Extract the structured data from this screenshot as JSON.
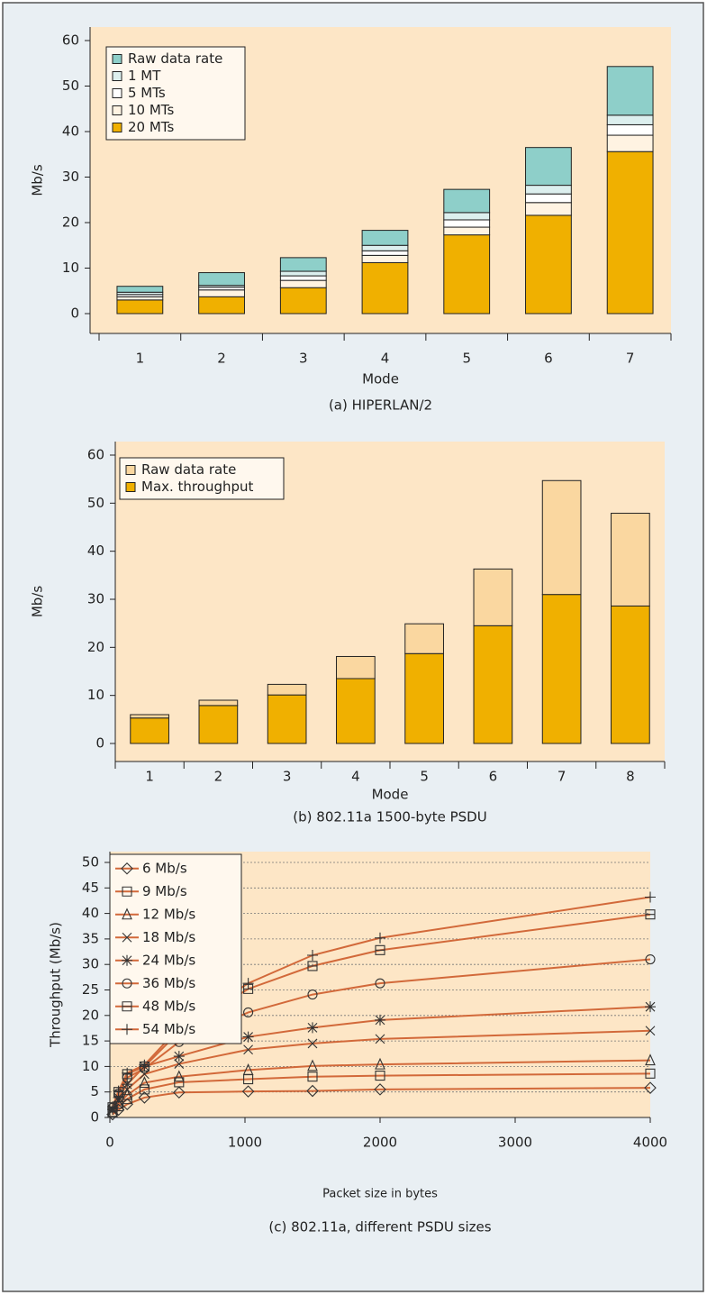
{
  "chart_data": [
    {
      "type": "bar",
      "stacked": true,
      "caption": "(a) HIPERLAN/2",
      "xlabel": "Mode",
      "ylabel": "Mb/s",
      "categories": [
        "1",
        "2",
        "3",
        "4",
        "5",
        "6",
        "7"
      ],
      "series": [
        {
          "name": "Raw data rate",
          "color": "#8ecfc9",
          "values": [
            1.3,
            2.8,
            3.0,
            3.3,
            5.1,
            8.3,
            10.7
          ]
        },
        {
          "name": "1 MT",
          "color": "#dcefee",
          "values": [
            0.5,
            0.4,
            1.0,
            1.2,
            1.6,
            1.9,
            2.1
          ]
        },
        {
          "name": "5 MTs",
          "color": "#ffffff",
          "values": [
            0.5,
            0.6,
            1.0,
            1.0,
            1.6,
            1.9,
            2.3
          ]
        },
        {
          "name": "10 MTs",
          "color": "#fff3e2",
          "values": [
            0.7,
            1.5,
            1.6,
            1.6,
            1.7,
            2.8,
            3.6
          ]
        },
        {
          "name": "20 MTs",
          "color": "#f0b000",
          "values": [
            3.0,
            3.7,
            5.7,
            11.2,
            17.3,
            21.6,
            35.6
          ]
        }
      ],
      "ylim": [
        0,
        60
      ],
      "yticks": [
        0,
        10,
        20,
        30,
        40,
        50,
        60
      ],
      "legend": "upper left"
    },
    {
      "type": "bar",
      "stacked": true,
      "caption": "(b) 802.11a 1500-byte PSDU",
      "xlabel": "Mode",
      "ylabel": "Mb/s",
      "categories": [
        "1",
        "2",
        "3",
        "4",
        "5",
        "6",
        "7",
        "8"
      ],
      "series": [
        {
          "name": "Raw data rate",
          "color": "#fad7a0",
          "values": [
            0.7,
            1.1,
            2.2,
            4.6,
            6.2,
            11.8,
            23.7,
            19.3
          ]
        },
        {
          "name": "Max. throughput",
          "color": "#f0b000",
          "values": [
            5.3,
            7.9,
            10.1,
            13.5,
            18.7,
            24.5,
            31.0,
            28.6
          ]
        }
      ],
      "ylim": [
        0,
        60
      ],
      "yticks": [
        0,
        10,
        20,
        30,
        40,
        50,
        60
      ],
      "legend": "upper left"
    },
    {
      "type": "line",
      "caption": "(c) 802.11a, different PSDU sizes",
      "xlabel": "Packet size in bytes",
      "ylabel": "Throughput (Mb/s)",
      "x": [
        20,
        64,
        128,
        256,
        512,
        1024,
        1500,
        2000,
        4000
      ],
      "series": [
        {
          "name": "6 Mb/s",
          "color": "#d2693a",
          "marker": "diamond",
          "values": [
            0.6,
            1.5,
            2.6,
            3.9,
            4.9,
            5.1,
            5.2,
            5.5,
            5.8
          ]
        },
        {
          "name": "9 Mb/s",
          "color": "#d2693a",
          "marker": "square",
          "values": [
            0.9,
            2.2,
            3.6,
            5.5,
            6.9,
            7.5,
            8.0,
            8.2,
            8.6
          ]
        },
        {
          "name": "12 Mb/s",
          "color": "#d2693a",
          "marker": "triangle",
          "values": [
            1.1,
            2.7,
            4.4,
            6.8,
            8.0,
            9.3,
            10.1,
            10.4,
            11.2
          ]
        },
        {
          "name": "18 Mb/s",
          "color": "#d2693a",
          "marker": "x",
          "values": [
            1.4,
            3.3,
            5.5,
            8.5,
            10.5,
            13.3,
            14.5,
            15.4,
            17.0
          ]
        },
        {
          "name": "24 Mb/s",
          "color": "#d2693a",
          "marker": "star",
          "values": [
            1.6,
            3.9,
            6.5,
            10.0,
            12.0,
            15.8,
            17.6,
            19.1,
            21.7
          ]
        },
        {
          "name": "36 Mb/s",
          "color": "#d2693a",
          "marker": "circle",
          "values": [
            1.9,
            4.7,
            7.8,
            9.6,
            14.8,
            20.6,
            24.1,
            26.3,
            31.0
          ]
        },
        {
          "name": "48 Mb/s",
          "color": "#d2693a",
          "marker": "square-bar",
          "values": [
            2.0,
            5.0,
            8.5,
            10.0,
            16.8,
            25.2,
            29.7,
            32.8,
            39.8
          ]
        },
        {
          "name": "54 Mb/s",
          "color": "#d2693a",
          "marker": "plus",
          "values": [
            2.1,
            5.2,
            8.7,
            10.3,
            17.6,
            26.3,
            31.8,
            35.2,
            43.2
          ]
        }
      ],
      "xlim": [
        0,
        4000
      ],
      "xticks": [
        0,
        1000,
        2000,
        3000,
        4000
      ],
      "ylim": [
        0,
        50
      ],
      "yticks": [
        0,
        5,
        10,
        15,
        20,
        25,
        30,
        35,
        40,
        45,
        50
      ],
      "grid": true,
      "legend": "upper left"
    }
  ]
}
